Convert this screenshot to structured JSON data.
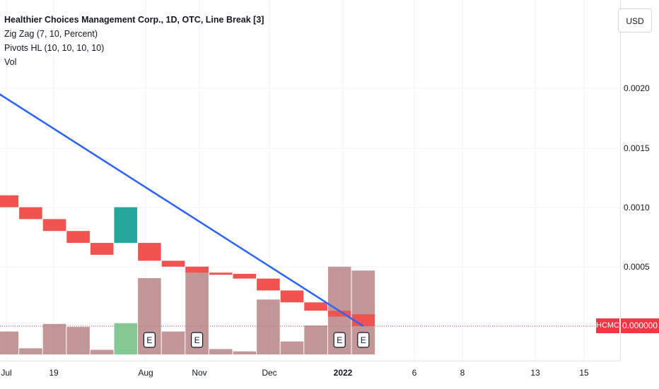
{
  "legend": {
    "title": "Healthier Choices Management Corp., 1D, OTC, Line Break [3]",
    "zigzag": "Zig Zag (7, 10, Percent)",
    "pivots": "Pivots HL (10, 10, 10, 10)",
    "vol": "Vol"
  },
  "currency_button": "USD",
  "symbol_label": "HCMC",
  "last_price_label": "0.000000",
  "colors": {
    "down": "#f05350",
    "up": "#26a69a",
    "volume_down": "#b98585",
    "volume_up": "#6fbf80",
    "zigzag": "#2962ff",
    "last_price_line": "#f23645"
  },
  "chart_data": {
    "type": "line_break",
    "y_axis": {
      "ticks": [
        "0.0020",
        "0.0015",
        "0.0010",
        "0.0005",
        "0.000000"
      ],
      "range": [
        -0.0003,
        0.0027
      ]
    },
    "x_axis": {
      "ticks": [
        {
          "label": "Jul",
          "bold": false
        },
        {
          "label": "19",
          "bold": false
        },
        {
          "label": "Aug",
          "bold": false
        },
        {
          "label": "Nov",
          "bold": false
        },
        {
          "label": "Dec",
          "bold": false
        },
        {
          "label": "2022",
          "bold": true
        },
        {
          "label": "6",
          "bold": false
        },
        {
          "label": "8",
          "bold": false
        },
        {
          "label": "13",
          "bold": false
        },
        {
          "label": "15",
          "bold": false
        }
      ]
    },
    "boxes": [
      {
        "open": 0.0011,
        "close": 0.001,
        "dir": "down"
      },
      {
        "open": 0.001,
        "close": 0.0009,
        "dir": "down"
      },
      {
        "open": 0.0009,
        "close": 0.0008,
        "dir": "down"
      },
      {
        "open": 0.0008,
        "close": 0.0007,
        "dir": "down"
      },
      {
        "open": 0.0007,
        "close": 0.0006,
        "dir": "down"
      },
      {
        "open": 0.0007,
        "close": 0.001,
        "dir": "up"
      },
      {
        "open": 0.0007,
        "close": 0.00055,
        "dir": "down"
      },
      {
        "open": 0.00055,
        "close": 0.0005,
        "dir": "down"
      },
      {
        "open": 0.0005,
        "close": 0.00045,
        "dir": "down"
      },
      {
        "open": 0.00045,
        "close": 0.00044,
        "dir": "down"
      },
      {
        "open": 0.00044,
        "close": 0.0004,
        "dir": "down"
      },
      {
        "open": 0.0004,
        "close": 0.0003,
        "dir": "down"
      },
      {
        "open": 0.0003,
        "close": 0.0002,
        "dir": "down"
      },
      {
        "open": 0.0002,
        "close": 0.00013,
        "dir": "down"
      },
      {
        "open": 0.00013,
        "close": 8e-05,
        "dir": "down"
      },
      {
        "open": 0.0001,
        "close": 0.0,
        "dir": "down"
      }
    ],
    "volume": [
      0.3,
      0.08,
      0.4,
      0.36,
      0.06,
      0.41,
      1.0,
      0.3,
      1.15,
      0.07,
      0.04,
      0.72,
      0.17,
      0.38,
      1.15,
      1.1
    ],
    "earnings_markers": [
      {
        "bar": 6,
        "label": "E"
      },
      {
        "bar": 8,
        "label": "E"
      },
      {
        "bar": 14,
        "label": "E"
      },
      {
        "bar": 15,
        "label": "E"
      }
    ],
    "zigzag": [
      {
        "bar": -0.2,
        "value": 0.002
      },
      {
        "bar": 15.5,
        "value": 0.0
      }
    ]
  }
}
